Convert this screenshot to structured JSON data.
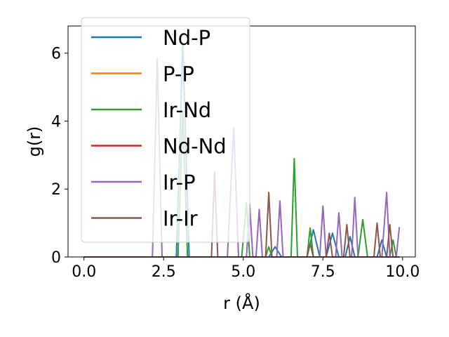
{
  "chart_data": {
    "type": "line",
    "title": "",
    "xlabel": "r (Å)",
    "ylabel": "g(r)",
    "xlim": [
      -0.5,
      10.4
    ],
    "ylim": [
      0,
      6.8
    ],
    "xticks": [
      0.0,
      2.5,
      5.0,
      7.5,
      10.0
    ],
    "xtick_labels": [
      "0.0",
      "2.5",
      "5.0",
      "7.5",
      "10.0"
    ],
    "yticks": [
      0,
      2,
      4,
      6
    ],
    "ytick_labels": [
      "0",
      "2",
      "4",
      "6"
    ],
    "grid": false,
    "legend_position": "upper-left",
    "series": [
      {
        "name": "Nd-P",
        "color": "#1f77b4",
        "points": [
          [
            0,
            0
          ],
          [
            2.9,
            0
          ],
          [
            3.1,
            6.3
          ],
          [
            3.3,
            0
          ],
          [
            5.8,
            0
          ],
          [
            6.0,
            0.3
          ],
          [
            6.2,
            0
          ],
          [
            7.0,
            0
          ],
          [
            7.2,
            0.8
          ],
          [
            7.4,
            0
          ],
          [
            7.6,
            0
          ],
          [
            7.8,
            0.7
          ],
          [
            8.0,
            0
          ],
          [
            8.2,
            0
          ],
          [
            8.35,
            0.6
          ],
          [
            8.5,
            0
          ],
          [
            9.2,
            0
          ],
          [
            9.35,
            0.5
          ],
          [
            9.5,
            0
          ],
          [
            9.9,
            0
          ]
        ]
      },
      {
        "name": "P-P",
        "color": "#ff7f0e",
        "points": [
          [
            0,
            0
          ],
          [
            9.9,
            0
          ]
        ]
      },
      {
        "name": "Ir-Nd",
        "color": "#2ca02c",
        "points": [
          [
            0,
            0
          ],
          [
            2.95,
            0
          ],
          [
            3.1,
            4.3
          ],
          [
            3.25,
            0
          ],
          [
            4.95,
            0
          ],
          [
            5.1,
            1.6
          ],
          [
            5.2,
            0
          ],
          [
            5.4,
            0
          ],
          [
            5.7,
            0
          ],
          [
            5.8,
            0.3
          ],
          [
            5.9,
            0
          ],
          [
            6.5,
            0
          ],
          [
            6.6,
            2.9
          ],
          [
            6.7,
            0
          ],
          [
            7.0,
            0
          ],
          [
            7.1,
            0.85
          ],
          [
            7.2,
            0
          ],
          [
            8.6,
            0
          ],
          [
            8.75,
            1.1
          ],
          [
            8.9,
            0
          ],
          [
            9.6,
            0
          ],
          [
            9.7,
            0.5
          ],
          [
            9.8,
            0
          ],
          [
            9.9,
            0
          ]
        ]
      },
      {
        "name": "Nd-Nd",
        "color": "#d62728",
        "points": [
          [
            0,
            0
          ],
          [
            9.9,
            0
          ]
        ]
      },
      {
        "name": "Ir-P",
        "color": "#9467bd",
        "points": [
          [
            0,
            0
          ],
          [
            2.15,
            0
          ],
          [
            2.3,
            5.85
          ],
          [
            2.45,
            0
          ],
          [
            4.5,
            0
          ],
          [
            4.7,
            3.8
          ],
          [
            4.85,
            0
          ],
          [
            5.1,
            0
          ],
          [
            5.2,
            1.55
          ],
          [
            5.3,
            0
          ],
          [
            5.4,
            0
          ],
          [
            5.5,
            1.4
          ],
          [
            5.6,
            0
          ],
          [
            6.05,
            0
          ],
          [
            6.15,
            1.65
          ],
          [
            6.25,
            0
          ],
          [
            7.4,
            0
          ],
          [
            7.5,
            1.5
          ],
          [
            7.6,
            0
          ],
          [
            7.9,
            0
          ],
          [
            8.0,
            1.3
          ],
          [
            8.1,
            0
          ],
          [
            8.4,
            0
          ],
          [
            8.5,
            1.75
          ],
          [
            8.6,
            0
          ],
          [
            9.35,
            0
          ],
          [
            9.5,
            1.9
          ],
          [
            9.6,
            0
          ],
          [
            9.8,
            0
          ],
          [
            9.9,
            0.88
          ]
        ]
      },
      {
        "name": "Ir-Ir",
        "color": "#8c564b",
        "points": [
          [
            0,
            0
          ],
          [
            4.0,
            0
          ],
          [
            4.1,
            2.5
          ],
          [
            4.2,
            0
          ],
          [
            5.7,
            0
          ],
          [
            5.8,
            1.9
          ],
          [
            5.9,
            0
          ],
          [
            7.0,
            0
          ],
          [
            7.1,
            0.4
          ],
          [
            7.2,
            0
          ],
          [
            7.6,
            0
          ],
          [
            7.7,
            0.7
          ],
          [
            7.8,
            0
          ],
          [
            8.15,
            0
          ],
          [
            8.25,
            0.95
          ],
          [
            8.35,
            0
          ],
          [
            9.1,
            0
          ],
          [
            9.2,
            1.0
          ],
          [
            9.3,
            0
          ],
          [
            9.5,
            0
          ],
          [
            9.6,
            0.95
          ],
          [
            9.7,
            0
          ],
          [
            9.9,
            0
          ]
        ]
      }
    ]
  }
}
